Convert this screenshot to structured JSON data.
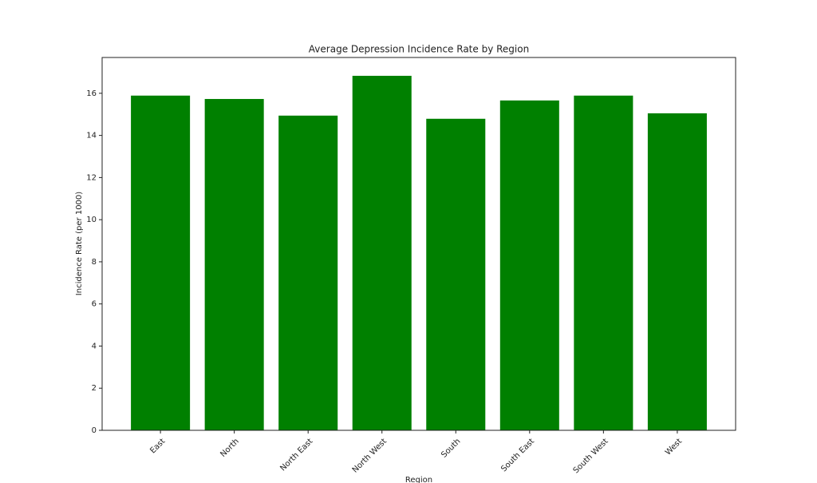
{
  "chart_data": {
    "type": "bar",
    "title": "Average Depression Incidence Rate by Region",
    "x_label": "Region",
    "y_label": "Incidence Rate (per 1000)",
    "categories": [
      "East",
      "North",
      "North East",
      "North West",
      "South",
      "South East",
      "South West",
      "West"
    ],
    "values": [
      15.89,
      15.73,
      14.94,
      16.83,
      14.79,
      15.66,
      15.89,
      15.05
    ],
    "color": "#008000",
    "ylim": [
      0,
      17.7
    ],
    "yticks": [
      0,
      2,
      4,
      6,
      8,
      10,
      12,
      14,
      16
    ],
    "grid": false
  }
}
